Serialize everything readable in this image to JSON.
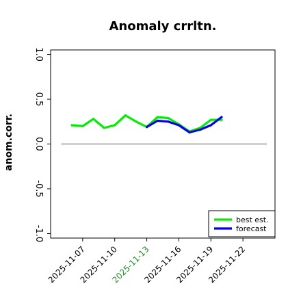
{
  "chart_data": {
    "type": "line",
    "title": "Anomaly crrltn.",
    "ylabel": "anom.corr.",
    "xlabel": "",
    "ylim": [
      -1.05,
      1.05
    ],
    "yticks": [
      -1.0,
      -0.5,
      0.0,
      0.5,
      1.0
    ],
    "ytick_labels": [
      "-1.0",
      "-0.5",
      "0.0",
      "0.5",
      "1.0"
    ],
    "xlim": [
      "2025-11-04",
      "2025-11-25"
    ],
    "xticks": [
      "2025-11-07",
      "2025-11-10",
      "2025-11-13",
      "2025-11-16",
      "2025-11-19",
      "2025-11-22"
    ],
    "xtick_labels": [
      "2025-11-07",
      "2025-11-10",
      "2025-11-13",
      "2025-11-16",
      "2025-11-19",
      "2025-11-22"
    ],
    "xtick_colors": [
      "#000000",
      "#000000",
      "#228b22",
      "#000000",
      "#000000",
      "#000000"
    ],
    "reference_line": 0.0,
    "grid": false,
    "legend_position": "bottom-right",
    "series": [
      {
        "name": "best est.",
        "color": "#00ee00",
        "x": [
          "2025-11-06",
          "2025-11-07",
          "2025-11-08",
          "2025-11-09",
          "2025-11-10",
          "2025-11-11",
          "2025-11-12",
          "2025-11-13",
          "2025-11-14",
          "2025-11-15",
          "2025-11-16",
          "2025-11-17",
          "2025-11-18",
          "2025-11-19",
          "2025-11-20"
        ],
        "y": [
          0.21,
          0.2,
          0.28,
          0.18,
          0.21,
          0.32,
          0.25,
          0.19,
          0.3,
          0.29,
          0.22,
          0.14,
          0.18,
          0.27,
          0.27
        ]
      },
      {
        "name": "forecast",
        "color": "#0000ee",
        "x": [
          "2025-11-13",
          "2025-11-14",
          "2025-11-15",
          "2025-11-16",
          "2025-11-17",
          "2025-11-18",
          "2025-11-19",
          "2025-11-20"
        ],
        "y": [
          0.19,
          0.26,
          0.25,
          0.21,
          0.13,
          0.16,
          0.21,
          0.3
        ]
      }
    ]
  }
}
